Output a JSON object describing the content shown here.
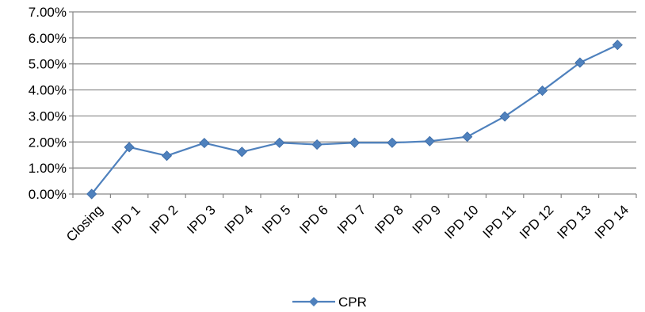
{
  "chart_data": {
    "type": "line",
    "categories": [
      "Closing",
      "IPD 1",
      "IPD 2",
      "IPD 3",
      "IPD 4",
      "IPD 5",
      "IPD 6",
      "IPD 7",
      "IPD 8",
      "IPD 9",
      "IPD 10",
      "IPD 11",
      "IPD 12",
      "IPD 13",
      "IPD 14"
    ],
    "series": [
      {
        "name": "CPR",
        "color": "#4F81BD",
        "values": [
          0.0,
          1.8,
          1.47,
          1.96,
          1.62,
          1.97,
          1.9,
          1.97,
          1.97,
          2.03,
          2.2,
          2.98,
          3.97,
          5.05,
          5.73
        ]
      }
    ],
    "y_ticks": [
      "0.00%",
      "1.00%",
      "2.00%",
      "3.00%",
      "4.00%",
      "5.00%",
      "6.00%",
      "7.00%"
    ],
    "ylim": [
      0,
      7
    ],
    "grid": "horizontal major gridlines",
    "legend": {
      "position": "bottom",
      "label": "CPR"
    },
    "marker": "diamond"
  }
}
